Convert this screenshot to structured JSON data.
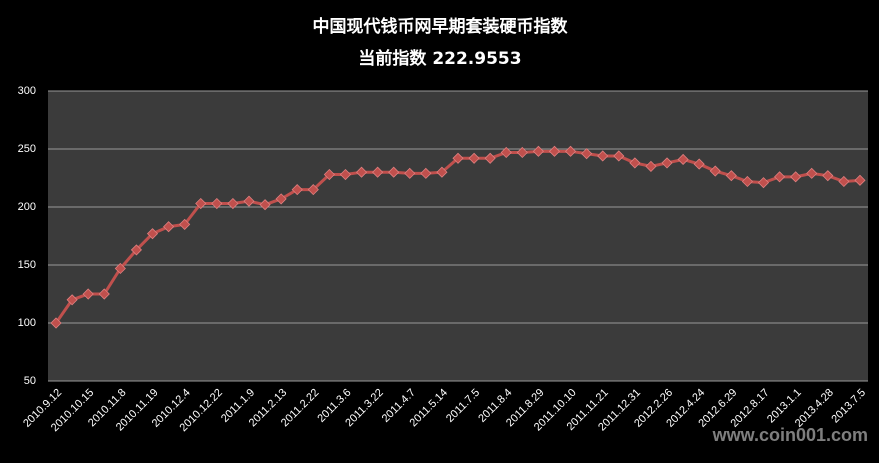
{
  "chart_data": {
    "type": "line",
    "title": "中国现代钱币网早期套装硬币指数",
    "subtitle": "当前指数 222.9553",
    "watermark": "www.coin001.com",
    "categories": [
      "2010.9.12",
      null,
      "2010.10.15",
      null,
      "2010.11.8",
      null,
      "2010.11.19",
      null,
      "2010.12.4",
      null,
      "2010.12.22",
      null,
      "2011.1.9",
      null,
      "2011.2.13",
      null,
      "2011.2.22",
      null,
      "2011.3.6",
      null,
      "2011.3.22",
      null,
      "2011.4.7",
      null,
      "2011.5.14",
      null,
      "2011.7.5",
      null,
      "2011.8.4",
      null,
      "2011.8.29",
      null,
      "2011.10.10",
      null,
      "2011.11.21",
      null,
      "2011.12.31",
      null,
      "2012.2.26",
      null,
      "2012.4.24",
      null,
      "2012.6.29",
      null,
      "2012.8.17",
      null,
      "2013.1.1",
      null,
      "2013.4.28",
      null,
      "2013.7.5"
    ],
    "series": [
      {
        "name": "指数",
        "color": "#c0504d",
        "values": [
          100,
          120,
          125,
          125,
          147,
          163,
          177,
          183,
          185,
          203,
          203,
          203,
          205,
          202,
          207,
          215,
          215,
          228,
          228,
          230,
          230,
          230,
          229,
          229,
          230,
          242,
          242,
          242,
          247,
          247,
          248,
          248,
          248,
          246,
          244,
          244,
          238,
          235,
          238,
          241,
          237,
          231,
          227,
          222,
          221,
          226,
          226,
          229,
          227,
          222,
          223
        ]
      }
    ],
    "ylim": [
      50,
      300
    ],
    "yticks": [
      50,
      100,
      150,
      200,
      250,
      300
    ],
    "grid": true
  }
}
